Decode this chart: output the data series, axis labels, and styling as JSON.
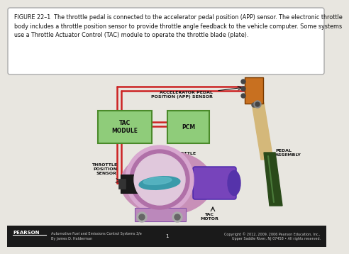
{
  "bg_color": "#dcdbd6",
  "main_bg": "#e8e6e0",
  "caption_box_color": "#ffffff",
  "caption_text": "FIGURE 22–1  The throttle pedal is connected to the accelerator pedal position (APP) sensor. The electronic throttle\nbody includes a throttle position sensor to provide throttle angle feedback to the vehicle computer. Some systems\nuse a Throttle Actuator Control (TAC) module to operate the throttle blade (plate).",
  "caption_fontsize": 5.8,
  "wire_color": "#cc2222",
  "wire_lw": 1.8,
  "tac_label": "TAC\nMODULE",
  "pcm_label": "PCM",
  "box_color": "#8fcc7a",
  "box_edge": "#4a8a2a",
  "footer_book": "Automotive Fuel and Emissions Control Systems 3/e\nBy James D. Halderman",
  "footer_right": "Copyright © 2012, 2009, 2006 Pearson Education, Inc.,\nUpper Saddle River, NJ 07458 • All rights reserved.",
  "page_num": "1",
  "label_fs": 4.5
}
